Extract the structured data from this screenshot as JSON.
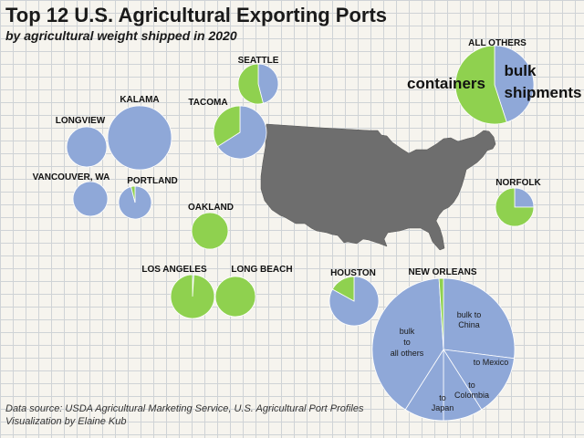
{
  "title": "Top 12 U.S. Agricultural Exporting Ports",
  "subtitle": "by agricultural weight shipped in 2020",
  "source_line1": "Data source: USDA Agricultural Marketing Service, U.S. Agricultural Port Profiles",
  "source_line2": "Visualization by Elaine Kub",
  "colors": {
    "bulk": "#8fa8d8",
    "containers": "#8fd14f",
    "map": "#6e6e6e",
    "background": "#f6f4ee"
  },
  "chart_data": {
    "type": "pie",
    "title": "Top 12 U.S. Agricultural Exporting Ports",
    "subtitle": "by agricultural weight shipped in 2020",
    "series_legend": [
      "bulk shipments",
      "containers"
    ],
    "ports": [
      {
        "name": "ALL OTHERS",
        "bulk_share": 0.45,
        "containers_share": 0.55
      },
      {
        "name": "SEATTLE",
        "bulk_share": 0.46,
        "containers_share": 0.54
      },
      {
        "name": "KALAMA",
        "bulk_share": 1.0,
        "containers_share": 0.0
      },
      {
        "name": "LONGVIEW",
        "bulk_share": 1.0,
        "containers_share": 0.0
      },
      {
        "name": "TACOMA",
        "bulk_share": 0.66,
        "containers_share": 0.34
      },
      {
        "name": "VANCOUVER, WA",
        "bulk_share": 1.0,
        "containers_share": 0.0
      },
      {
        "name": "PORTLAND",
        "bulk_share": 0.96,
        "containers_share": 0.04
      },
      {
        "name": "OAKLAND",
        "bulk_share": 0.0,
        "containers_share": 1.0
      },
      {
        "name": "NORFOLK",
        "bulk_share": 0.25,
        "containers_share": 0.75
      },
      {
        "name": "LOS ANGELES",
        "bulk_share": 0.01,
        "containers_share": 0.99
      },
      {
        "name": "LONG BEACH",
        "bulk_share": 0.0,
        "containers_share": 1.0
      },
      {
        "name": "HOUSTON",
        "bulk_share": 0.83,
        "containers_share": 0.17
      },
      {
        "name": "NEW ORLEANS",
        "bulk_share": 0.99,
        "containers_share": 0.01,
        "slices": [
          {
            "label": "bulk to China",
            "share": 0.27
          },
          {
            "label": "to Mexico",
            "share": 0.14
          },
          {
            "label": "to Colombia",
            "share": 0.09
          },
          {
            "label": "to Japan",
            "share": 0.09
          },
          {
            "label": "bulk to all others",
            "share": 0.4
          },
          {
            "label": "containers",
            "share": 0.01
          }
        ]
      }
    ]
  }
}
